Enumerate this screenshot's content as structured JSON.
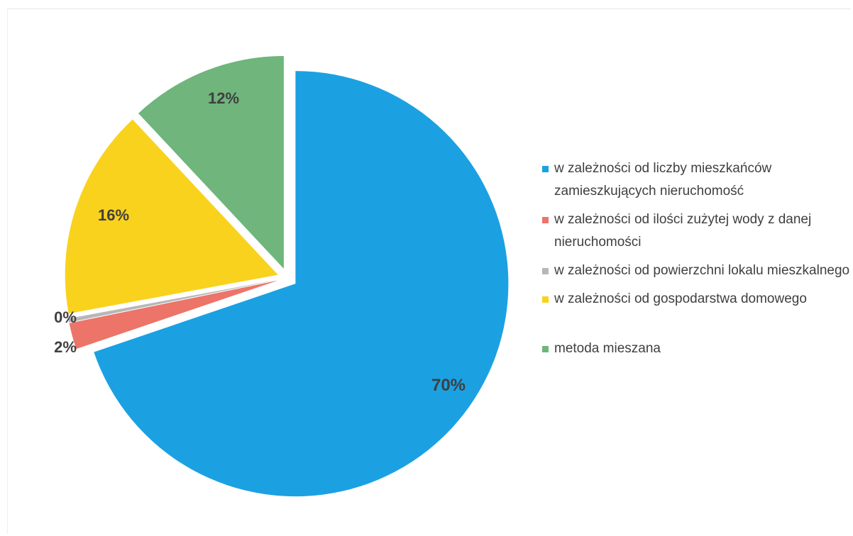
{
  "chart_data": {
    "type": "pie",
    "slices": [
      {
        "label": "w zależności od liczby mieszkańców zamieszkujących nieruchomość",
        "value": 70,
        "display": "70%",
        "color": "#1ba1e2"
      },
      {
        "label": "w zależności od ilości zużytej wody z danej nieruchomości",
        "value": 2,
        "display": "2%",
        "color": "#ec7468"
      },
      {
        "label": "w zależności od powierzchni lokalu mieszkalnego",
        "value": 0.3,
        "display": "0%",
        "color": "#b7b7b7"
      },
      {
        "label": "w zależności od gospodarstwa domowego",
        "value": 16,
        "display": "16%",
        "color": "#f9d21d"
      },
      {
        "label": "metoda mieszana",
        "value": 12,
        "display": "12%",
        "color": "#6fb57c"
      }
    ],
    "start_angle_deg": 0,
    "direction": "clockwise",
    "exploded": true,
    "legend_position": "right"
  }
}
